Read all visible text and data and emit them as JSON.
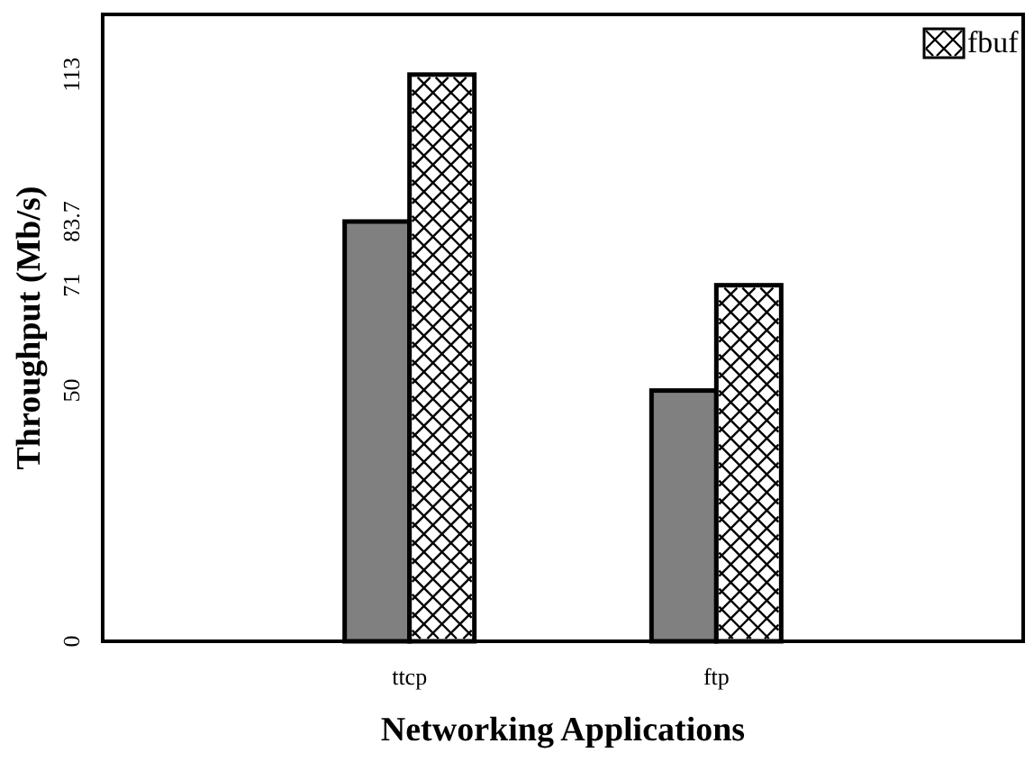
{
  "chart_data": {
    "type": "bar",
    "xlabel": "Networking Applications",
    "ylabel": "Throughput (Mb/s)",
    "categories": [
      "ttcp",
      "ftp"
    ],
    "series": [
      {
        "color": "#808080",
        "values": [
          83.7,
          50
        ]
      },
      {
        "name": "fbuf",
        "color": "#ffffff",
        "values": [
          113,
          71
        ]
      }
    ],
    "ylim": [
      0,
      125
    ],
    "yticks": [
      0,
      50,
      71,
      83.7,
      113
    ],
    "grid": false,
    "legend": "top right"
  }
}
